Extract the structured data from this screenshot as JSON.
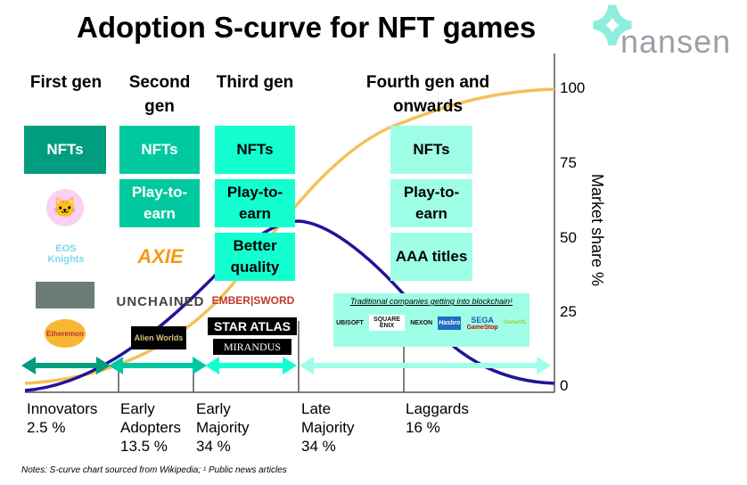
{
  "title": "Adoption S-curve for NFT games",
  "brand": "nansen",
  "generations": [
    {
      "label": "First gen",
      "features": [
        "NFTs"
      ],
      "logos": [
        "CryptoKitties",
        "EOS Knights",
        "Decentraland-like",
        "Etheremon"
      ]
    },
    {
      "label": "Second gen",
      "features": [
        "NFTs",
        "Play-to-earn"
      ],
      "logos": [
        "Axie Infinity",
        "Gods Unchained",
        "Alien Worlds"
      ]
    },
    {
      "label": "Third gen",
      "features": [
        "NFTs",
        "Play-to-earn",
        "Better quality"
      ],
      "logos": [
        "Ember Sword",
        "Star Atlas",
        "Mirandus"
      ]
    },
    {
      "label": "Fourth gen and onwards",
      "features": [
        "NFTs",
        "Play-to-earn",
        "AAA titles"
      ]
    }
  ],
  "traditional": {
    "title": "Traditional companies getting into blockchain¹",
    "logos": [
      "UBISOFT",
      "SQUARE ENIX",
      "NEXON",
      "Hasbro",
      "SEGA",
      "GameStop",
      "GameVIL"
    ]
  },
  "y_axis": {
    "label": "Market share %",
    "ticks": [
      "0",
      "25",
      "50",
      "75",
      "100"
    ]
  },
  "segments": [
    {
      "name": "Innovators",
      "pct": "2.5 %"
    },
    {
      "name": "Early Adopters",
      "pct": "13.5 %"
    },
    {
      "name": "Early Majority",
      "pct": "34 %"
    },
    {
      "name": "Late Majority",
      "pct": "34 %"
    },
    {
      "name": "Laggards",
      "pct": "16 %"
    }
  ],
  "notes": "Notes: S-curve chart sourced from Wikipedia; ¹ Public news articles",
  "colors": {
    "gen1": "#009e7e",
    "gen2": "#00c99f",
    "gen3": "#14ffd0",
    "gen4": "#9effe6",
    "s_curve": "#f5c05a",
    "bell": "#1f1499"
  }
}
